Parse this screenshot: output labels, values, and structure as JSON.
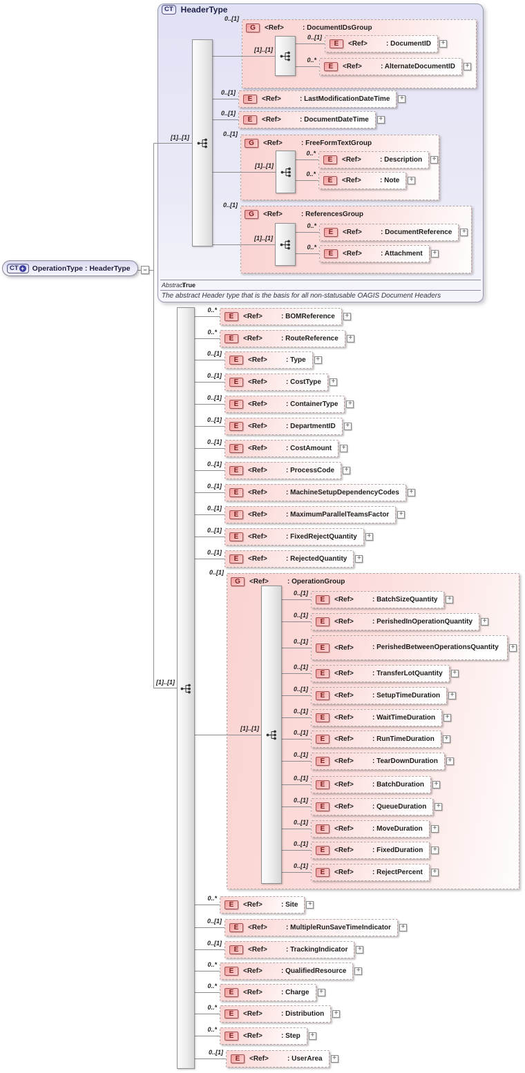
{
  "icons": {
    "collapse_glyph": "−",
    "plus_glyph": "+",
    "expand_glyph": "+",
    "sequence_icon": "sequence-compositor"
  },
  "colors": {
    "panel_fill": "#e6e6f6",
    "node_fill": "#fad3d1",
    "badge_border": "#a05252",
    "line": "#8c8c8c"
  },
  "root_node": {
    "badge": "CT",
    "label": "OperationType : HeaderType"
  },
  "links": {
    "to_header_cardinality": "[1]..[1]",
    "to_sequence_cardinality": "[1]..[1]"
  },
  "header_type": {
    "badge": "CT",
    "title": "HeaderType",
    "abstract_label": "Abstract",
    "abstract_value": "True",
    "annotation": "The abstract Header type that is the basis for all non-statusable OAGIS Document Headers",
    "children": [
      {
        "kind": "group",
        "badge": "G",
        "ref": "<Ref>",
        "name": ": DocumentIDsGroup",
        "cardinality": "0..[1]",
        "inner_cardinality": "[1]..[1]",
        "children": [
          {
            "kind": "element",
            "badge": "E",
            "ref": "<Ref>",
            "name": ": DocumentID",
            "cardinality": "0..[1]"
          },
          {
            "kind": "element",
            "badge": "E",
            "ref": "<Ref>",
            "name": ": AlternateDocumentID",
            "cardinality": "0..*"
          }
        ]
      },
      {
        "kind": "element",
        "badge": "E",
        "ref": "<Ref>",
        "name": ": LastModificationDateTime",
        "cardinality": "0..[1]"
      },
      {
        "kind": "element",
        "badge": "E",
        "ref": "<Ref>",
        "name": ": DocumentDateTime",
        "cardinality": "0..[1]"
      },
      {
        "kind": "group",
        "badge": "G",
        "ref": "<Ref>",
        "name": ": FreeFormTextGroup",
        "cardinality": "0..[1]",
        "inner_cardinality": "[1]..[1]",
        "children": [
          {
            "kind": "element",
            "badge": "E",
            "ref": "<Ref>",
            "name": ": Description",
            "cardinality": "0..*"
          },
          {
            "kind": "element",
            "badge": "E",
            "ref": "<Ref>",
            "name": ": Note",
            "cardinality": "0..*"
          }
        ]
      },
      {
        "kind": "group",
        "badge": "G",
        "ref": "<Ref>",
        "name": ": ReferencesGroup",
        "cardinality": "0..[1]",
        "inner_cardinality": "[1]..[1]",
        "children": [
          {
            "kind": "element",
            "badge": "E",
            "ref": "<Ref>",
            "name": ": DocumentReference",
            "cardinality": "0..*"
          },
          {
            "kind": "element",
            "badge": "E",
            "ref": "<Ref>",
            "name": ": Attachment",
            "cardinality": "0..*"
          }
        ]
      }
    ]
  },
  "content_model": {
    "inner_cardinality": "[1]..[1]",
    "children": [
      {
        "kind": "element",
        "badge": "E",
        "ref": "<Ref>",
        "name": ": BOMReference",
        "cardinality": "0..*"
      },
      {
        "kind": "element",
        "badge": "E",
        "ref": "<Ref>",
        "name": ": RouteReference",
        "cardinality": "0..*"
      },
      {
        "kind": "element",
        "badge": "E",
        "ref": "<Ref>",
        "name": ": Type",
        "cardinality": "0..[1]"
      },
      {
        "kind": "element",
        "badge": "E",
        "ref": "<Ref>",
        "name": ": CostType",
        "cardinality": "0..[1]"
      },
      {
        "kind": "element",
        "badge": "E",
        "ref": "<Ref>",
        "name": ": ContainerType",
        "cardinality": "0..[1]"
      },
      {
        "kind": "element",
        "badge": "E",
        "ref": "<Ref>",
        "name": ": DepartmentID",
        "cardinality": "0..[1]"
      },
      {
        "kind": "element",
        "badge": "E",
        "ref": "<Ref>",
        "name": ": CostAmount",
        "cardinality": "0..[1]"
      },
      {
        "kind": "element",
        "badge": "E",
        "ref": "<Ref>",
        "name": ": ProcessCode",
        "cardinality": "0..[1]"
      },
      {
        "kind": "element",
        "badge": "E",
        "ref": "<Ref>",
        "name": ": MachineSetupDependencyCodes",
        "cardinality": "0..[1]"
      },
      {
        "kind": "element",
        "badge": "E",
        "ref": "<Ref>",
        "name": ": MaximumParallelTeamsFactor",
        "cardinality": "0..[1]"
      },
      {
        "kind": "element",
        "badge": "E",
        "ref": "<Ref>",
        "name": ": FixedRejectQuantity",
        "cardinality": "0..[1]"
      },
      {
        "kind": "element",
        "badge": "E",
        "ref": "<Ref>",
        "name": ": RejectedQuantity",
        "cardinality": "0..[1]"
      },
      {
        "kind": "group",
        "badge": "G",
        "ref": "<Ref>",
        "name": ": OperationGroup",
        "cardinality": "0..[1]",
        "inner_cardinality": "[1]..[1]",
        "children": [
          {
            "kind": "element",
            "badge": "E",
            "ref": "<Ref>",
            "name": ": BatchSizeQuantity",
            "cardinality": "0..[1]"
          },
          {
            "kind": "element",
            "badge": "E",
            "ref": "<Ref>",
            "name": ": PerishedInOperationQuantity",
            "cardinality": "0..[1]"
          },
          {
            "kind": "element",
            "badge": "E",
            "ref": "<Ref>",
            "name": ": PerishedBetweenOperationsQuantity",
            "cardinality": "0..[1]"
          },
          {
            "kind": "element",
            "badge": "E",
            "ref": "<Ref>",
            "name": ": TransferLotQuantity",
            "cardinality": "0..[1]"
          },
          {
            "kind": "element",
            "badge": "E",
            "ref": "<Ref>",
            "name": ": SetupTimeDuration",
            "cardinality": "0..[1]"
          },
          {
            "kind": "element",
            "badge": "E",
            "ref": "<Ref>",
            "name": ": WaitTimeDuration",
            "cardinality": "0..[1]"
          },
          {
            "kind": "element",
            "badge": "E",
            "ref": "<Ref>",
            "name": ": RunTimeDuration",
            "cardinality": "0..[1]"
          },
          {
            "kind": "element",
            "badge": "E",
            "ref": "<Ref>",
            "name": ": TearDownDuration",
            "cardinality": "0..[1]"
          },
          {
            "kind": "element",
            "badge": "E",
            "ref": "<Ref>",
            "name": ": BatchDuration",
            "cardinality": "0..[1]"
          },
          {
            "kind": "element",
            "badge": "E",
            "ref": "<Ref>",
            "name": ": QueueDuration",
            "cardinality": "0..[1]"
          },
          {
            "kind": "element",
            "badge": "E",
            "ref": "<Ref>",
            "name": ": MoveDuration",
            "cardinality": "0..[1]"
          },
          {
            "kind": "element",
            "badge": "E",
            "ref": "<Ref>",
            "name": ": FixedDuration",
            "cardinality": "0..[1]"
          },
          {
            "kind": "element",
            "badge": "E",
            "ref": "<Ref>",
            "name": ": RejectPercent",
            "cardinality": "0..[1]"
          }
        ]
      },
      {
        "kind": "element",
        "badge": "E",
        "ref": "<Ref>",
        "name": ": Site",
        "cardinality": "0..*"
      },
      {
        "kind": "element",
        "badge": "E",
        "ref": "<Ref>",
        "name": ": MultipleRunSaveTimeIndicator",
        "cardinality": "0..[1]"
      },
      {
        "kind": "element",
        "badge": "E",
        "ref": "<Ref>",
        "name": ": TrackingIndicator",
        "cardinality": "0..[1]"
      },
      {
        "kind": "element",
        "badge": "E",
        "ref": "<Ref>",
        "name": ": QualifiedResource",
        "cardinality": "0..*"
      },
      {
        "kind": "element",
        "badge": "E",
        "ref": "<Ref>",
        "name": ": Charge",
        "cardinality": "0..*"
      },
      {
        "kind": "element",
        "badge": "E",
        "ref": "<Ref>",
        "name": ": Distribution",
        "cardinality": "0..*"
      },
      {
        "kind": "element",
        "badge": "E",
        "ref": "<Ref>",
        "name": ": Step",
        "cardinality": "0..*"
      },
      {
        "kind": "element",
        "badge": "E",
        "ref": "<Ref>",
        "name": ": UserArea",
        "cardinality": "0..[1]"
      }
    ]
  }
}
